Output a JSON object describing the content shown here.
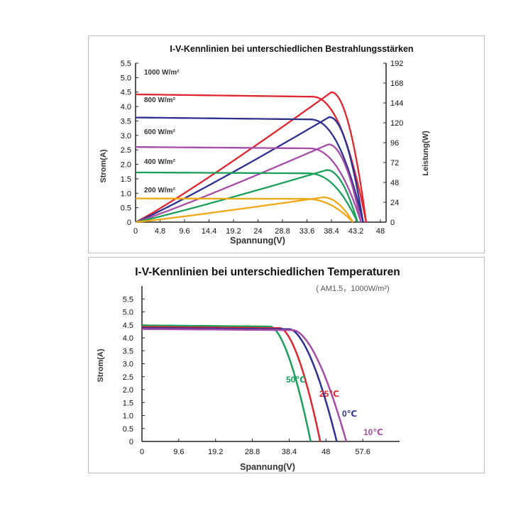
{
  "chart_data": [
    {
      "type": "line",
      "title": "I-V-Kennlinien bei unterschiedlichen Bestrahlungsstärken",
      "xlabel": "Spannung(V)",
      "ylabel": "Strom(A)",
      "y2label": "Leistung(W)",
      "xlim": [
        0,
        48
      ],
      "ylim": [
        0,
        5.5
      ],
      "y2lim": [
        0,
        192
      ],
      "x_ticks": [
        "0",
        "4.8",
        "9.6",
        "14.4",
        "19.2",
        "24",
        "28.8",
        "33.6",
        "38.4",
        "43.2",
        "48"
      ],
      "y_ticks": [
        "0",
        "0.5",
        "1.0",
        "1.5",
        "2.0",
        "2.5",
        "3.0",
        "3.5",
        "4.0",
        "4.5",
        "5.0",
        "5.5"
      ],
      "y2_ticks": [
        "0",
        "24",
        "48",
        "72",
        "96",
        "120",
        "144",
        "168",
        "192"
      ],
      "grid": false,
      "series": [
        {
          "name": "1000 W/m²",
          "color": "#e0262e",
          "isc": 4.42,
          "voc": 45.2,
          "pmax": 157,
          "vmp": 38.4
        },
        {
          "name": "800 W/m²",
          "color": "#2e3192",
          "isc": 3.62,
          "voc": 44.6,
          "pmax": 127,
          "vmp": 38.0
        },
        {
          "name": "600 W/m²",
          "color": "#a64ca6",
          "isc": 2.6,
          "voc": 44.2,
          "pmax": 94,
          "vmp": 37.8
        },
        {
          "name": "400 W/m²",
          "color": "#1aa05a",
          "isc": 1.72,
          "voc": 43.5,
          "pmax": 63,
          "vmp": 37.5
        },
        {
          "name": "200 W/m²",
          "color": "#f0a818",
          "isc": 0.82,
          "voc": 42.6,
          "pmax": 30,
          "vmp": 36.8
        }
      ]
    },
    {
      "type": "line",
      "title": "I-V-Kennlinien bei unterschiedlichen Temperaturen",
      "condition": "( AM1.5，1000W/m²)",
      "xlabel": "Spannung(V)",
      "ylabel": "Strom(A)",
      "xlim": [
        0,
        67.2
      ],
      "ylim": [
        0,
        6.0
      ],
      "x_ticks": [
        "0",
        "9.6",
        "19.2",
        "28.8",
        "38.4",
        "48",
        "57.6"
      ],
      "y_ticks": [
        "0",
        "0.5",
        "1.0",
        "1.5",
        "2.0",
        "2.5",
        "3.0",
        "3.5",
        "4.0",
        "4.5",
        "5.0",
        "5.5"
      ],
      "grid": false,
      "series": [
        {
          "name": "50℃",
          "color": "#1aa05a",
          "isc": 4.48,
          "voc": 44.0,
          "knee": 33.5
        },
        {
          "name": "25℃",
          "color": "#e0262e",
          "isc": 4.42,
          "voc": 46.5,
          "knee": 36.0
        },
        {
          "name": "0℃",
          "color": "#2e3192",
          "isc": 4.38,
          "voc": 50.8,
          "knee": 38.5
        },
        {
          "name": "10℃",
          "color": "#a64ca6",
          "isc": 4.34,
          "voc": 53.3,
          "knee": 39.5
        }
      ]
    }
  ]
}
